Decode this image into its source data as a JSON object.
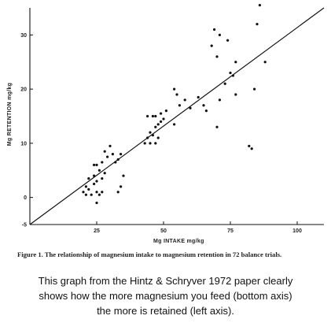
{
  "chart_data": {
    "type": "scatter",
    "title": "",
    "xlabel": "Mg INTAKE  mg/kg",
    "ylabel": "Mg RETENTION  mg/kg",
    "xlim": [
      0,
      110
    ],
    "ylim": [
      -5,
      35
    ],
    "x_ticks": [
      25,
      50,
      75,
      100
    ],
    "y_ticks": [
      -5,
      0,
      10,
      20,
      30
    ],
    "grid": false,
    "legend": "none",
    "fit_line": {
      "x": [
        0,
        110
      ],
      "y": [
        -5,
        35
      ]
    },
    "series": [
      {
        "values": [
          [
            20,
            1
          ],
          [
            21,
            0.5
          ],
          [
            21,
            2
          ],
          [
            22,
            1.5
          ],
          [
            22,
            3.5
          ],
          [
            23,
            0.5
          ],
          [
            24,
            2.5
          ],
          [
            24,
            4
          ],
          [
            25,
            1
          ],
          [
            25,
            3
          ],
          [
            25,
            6
          ],
          [
            26,
            0.5
          ],
          [
            26,
            5
          ],
          [
            27,
            1
          ],
          [
            27,
            3.5
          ],
          [
            27,
            6.5
          ],
          [
            28,
            4.5
          ],
          [
            28,
            8.5
          ],
          [
            29,
            7.5
          ],
          [
            30,
            9.5
          ],
          [
            31,
            8
          ],
          [
            32,
            6.5
          ],
          [
            33,
            1
          ],
          [
            33,
            7
          ],
          [
            34,
            2
          ],
          [
            34,
            8
          ],
          [
            35,
            4
          ],
          [
            24,
            6
          ],
          [
            25,
            -1
          ],
          [
            43,
            10
          ],
          [
            44,
            11
          ],
          [
            44,
            15
          ],
          [
            45,
            10
          ],
          [
            45,
            12
          ],
          [
            46,
            11.5
          ],
          [
            46,
            15
          ],
          [
            47,
            10
          ],
          [
            47,
            13
          ],
          [
            47,
            15
          ],
          [
            48,
            11
          ],
          [
            48,
            13.5
          ],
          [
            49,
            14
          ],
          [
            49,
            15.5
          ],
          [
            50,
            14.5
          ],
          [
            51,
            16
          ],
          [
            54,
            20
          ],
          [
            54,
            13.5
          ],
          [
            55,
            19
          ],
          [
            56,
            17
          ],
          [
            58,
            18
          ],
          [
            60,
            16.5
          ],
          [
            63,
            18.5
          ],
          [
            65,
            17
          ],
          [
            66,
            16
          ],
          [
            68,
            28
          ],
          [
            69,
            31
          ],
          [
            70,
            13
          ],
          [
            70,
            26
          ],
          [
            71,
            30
          ],
          [
            71,
            18
          ],
          [
            73,
            21
          ],
          [
            74,
            29
          ],
          [
            75,
            23
          ],
          [
            76,
            22.5
          ],
          [
            77,
            25
          ],
          [
            77,
            19
          ],
          [
            82,
            9.5
          ],
          [
            83,
            9
          ],
          [
            84,
            20
          ],
          [
            85,
            32
          ],
          [
            86,
            35.5
          ],
          [
            88,
            25
          ]
        ]
      }
    ]
  },
  "caption": "Figure 1. The relationship of magnesium intake to magnesium retention in 72 balance trials.",
  "note_lines": [
    "This graph from the Hintz & Schryver 1972 paper clearly",
    "shows how the more magnesium you feed (bottom axis)",
    "the more is retained (left axis)."
  ]
}
